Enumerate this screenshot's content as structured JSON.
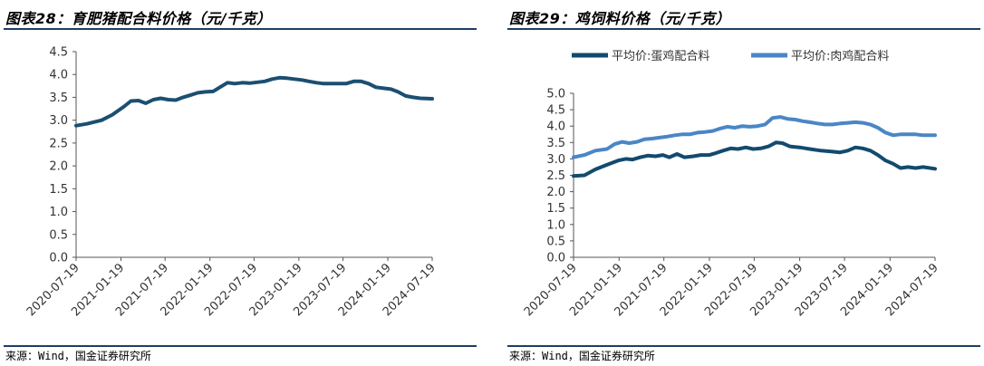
{
  "panels": [
    {
      "title": "图表28：育肥猪配合料价格（元/千克）",
      "source": "来源：Wind，国金证券研究所"
    },
    {
      "title": "图表29：鸡饲料价格（元/千克）",
      "source": "来源：Wind，国金证券研究所"
    }
  ],
  "chart_data": [
    {
      "type": "line",
      "title": "",
      "xlabel": "",
      "ylabel": "",
      "ylim": [
        0,
        4.5
      ],
      "yticks": [
        "0.0",
        "0.5",
        "1.0",
        "1.5",
        "2.0",
        "2.5",
        "3.0",
        "3.5",
        "4.0",
        "4.5"
      ],
      "xticks": [
        "2020-07-19",
        "2021-01-19",
        "2021-07-19",
        "2022-01-19",
        "2022-07-19",
        "2023-01-19",
        "2023-07-19",
        "2024-01-19",
        "2024-07-19"
      ],
      "xlim": [
        "2020-07-19",
        "2024-07-19"
      ],
      "legend": "none",
      "grid": false,
      "series": [
        {
          "name": "",
          "color": "#1b4f72",
          "points": [
            [
              "2020-07-19",
              2.88
            ],
            [
              "2020-09-01",
              2.92
            ],
            [
              "2020-11-01",
              3.0
            ],
            [
              "2020-12-15",
              3.12
            ],
            [
              "2021-02-01",
              3.3
            ],
            [
              "2021-03-01",
              3.42
            ],
            [
              "2021-04-01",
              3.43
            ],
            [
              "2021-05-01",
              3.37
            ],
            [
              "2021-06-01",
              3.45
            ],
            [
              "2021-07-01",
              3.48
            ],
            [
              "2021-08-01",
              3.45
            ],
            [
              "2021-09-01",
              3.44
            ],
            [
              "2021-10-01",
              3.5
            ],
            [
              "2021-11-01",
              3.55
            ],
            [
              "2021-12-01",
              3.6
            ],
            [
              "2022-01-01",
              3.62
            ],
            [
              "2022-02-01",
              3.63
            ],
            [
              "2022-03-01",
              3.72
            ],
            [
              "2022-04-01",
              3.82
            ],
            [
              "2022-05-01",
              3.8
            ],
            [
              "2022-06-01",
              3.82
            ],
            [
              "2022-07-01",
              3.81
            ],
            [
              "2022-08-01",
              3.83
            ],
            [
              "2022-09-01",
              3.85
            ],
            [
              "2022-10-01",
              3.9
            ],
            [
              "2022-11-01",
              3.93
            ],
            [
              "2022-12-01",
              3.92
            ],
            [
              "2023-01-01",
              3.9
            ],
            [
              "2023-02-01",
              3.88
            ],
            [
              "2023-03-01",
              3.85
            ],
            [
              "2023-04-01",
              3.82
            ],
            [
              "2023-05-01",
              3.8
            ],
            [
              "2023-06-01",
              3.8
            ],
            [
              "2023-07-01",
              3.8
            ],
            [
              "2023-08-01",
              3.8
            ],
            [
              "2023-09-01",
              3.85
            ],
            [
              "2023-10-01",
              3.85
            ],
            [
              "2023-11-01",
              3.8
            ],
            [
              "2023-12-01",
              3.72
            ],
            [
              "2024-01-01",
              3.7
            ],
            [
              "2024-02-01",
              3.68
            ],
            [
              "2024-03-01",
              3.62
            ],
            [
              "2024-04-01",
              3.53
            ],
            [
              "2024-05-01",
              3.5
            ],
            [
              "2024-06-01",
              3.48
            ],
            [
              "2024-07-19",
              3.47
            ]
          ]
        }
      ]
    },
    {
      "type": "line",
      "title": "",
      "xlabel": "",
      "ylabel": "",
      "ylim": [
        0,
        5.0
      ],
      "yticks": [
        "0.0",
        "0.5",
        "1.0",
        "1.5",
        "2.0",
        "2.5",
        "3.0",
        "3.5",
        "4.0",
        "4.5",
        "5.0"
      ],
      "xticks": [
        "2020-07-19",
        "2021-01-19",
        "2021-07-19",
        "2022-01-19",
        "2022-07-19",
        "2023-01-19",
        "2023-07-19",
        "2024-01-19",
        "2024-07-19"
      ],
      "xlim": [
        "2020-07-19",
        "2024-07-19"
      ],
      "legend": "top",
      "grid": false,
      "series": [
        {
          "name": "平均价:蛋鸡配合料",
          "color": "#134a6e",
          "points": [
            [
              "2020-07-19",
              2.48
            ],
            [
              "2020-09-01",
              2.5
            ],
            [
              "2020-10-15",
              2.68
            ],
            [
              "2020-12-01",
              2.82
            ],
            [
              "2021-01-15",
              2.95
            ],
            [
              "2021-02-15",
              3.0
            ],
            [
              "2021-03-15",
              2.98
            ],
            [
              "2021-04-15",
              3.05
            ],
            [
              "2021-05-15",
              3.1
            ],
            [
              "2021-06-15",
              3.08
            ],
            [
              "2021-07-15",
              3.12
            ],
            [
              "2021-08-10",
              3.05
            ],
            [
              "2021-09-10",
              3.15
            ],
            [
              "2021-10-10",
              3.05
            ],
            [
              "2021-11-15",
              3.08
            ],
            [
              "2021-12-15",
              3.12
            ],
            [
              "2022-01-19",
              3.12
            ],
            [
              "2022-02-15",
              3.18
            ],
            [
              "2022-03-15",
              3.25
            ],
            [
              "2022-04-15",
              3.32
            ],
            [
              "2022-05-15",
              3.3
            ],
            [
              "2022-06-15",
              3.35
            ],
            [
              "2022-07-15",
              3.3
            ],
            [
              "2022-08-15",
              3.32
            ],
            [
              "2022-09-15",
              3.38
            ],
            [
              "2022-10-15",
              3.5
            ],
            [
              "2022-11-10",
              3.48
            ],
            [
              "2022-12-10",
              3.38
            ],
            [
              "2023-01-19",
              3.35
            ],
            [
              "2023-03-01",
              3.3
            ],
            [
              "2023-04-15",
              3.25
            ],
            [
              "2023-06-01",
              3.22
            ],
            [
              "2023-07-01",
              3.2
            ],
            [
              "2023-08-01",
              3.25
            ],
            [
              "2023-09-01",
              3.35
            ],
            [
              "2023-10-01",
              3.32
            ],
            [
              "2023-11-01",
              3.25
            ],
            [
              "2023-12-01",
              3.12
            ],
            [
              "2024-01-01",
              2.95
            ],
            [
              "2024-02-01",
              2.85
            ],
            [
              "2024-03-01",
              2.72
            ],
            [
              "2024-04-01",
              2.75
            ],
            [
              "2024-05-01",
              2.72
            ],
            [
              "2024-06-01",
              2.75
            ],
            [
              "2024-07-19",
              2.7
            ]
          ]
        },
        {
          "name": "平均价:肉鸡配合料",
          "color": "#4a86c6",
          "points": [
            [
              "2020-07-19",
              3.05
            ],
            [
              "2020-09-01",
              3.12
            ],
            [
              "2020-10-15",
              3.25
            ],
            [
              "2020-12-01",
              3.3
            ],
            [
              "2021-01-01",
              3.45
            ],
            [
              "2021-02-01",
              3.52
            ],
            [
              "2021-03-01",
              3.48
            ],
            [
              "2021-04-01",
              3.52
            ],
            [
              "2021-05-01",
              3.6
            ],
            [
              "2021-06-01",
              3.62
            ],
            [
              "2021-07-01",
              3.65
            ],
            [
              "2021-08-01",
              3.68
            ],
            [
              "2021-09-01",
              3.72
            ],
            [
              "2021-10-01",
              3.75
            ],
            [
              "2021-11-01",
              3.75
            ],
            [
              "2021-12-01",
              3.8
            ],
            [
              "2022-01-01",
              3.82
            ],
            [
              "2022-02-01",
              3.85
            ],
            [
              "2022-03-01",
              3.92
            ],
            [
              "2022-04-01",
              3.98
            ],
            [
              "2022-05-01",
              3.95
            ],
            [
              "2022-06-01",
              4.0
            ],
            [
              "2022-07-01",
              3.98
            ],
            [
              "2022-08-01",
              4.0
            ],
            [
              "2022-09-01",
              4.05
            ],
            [
              "2022-10-01",
              4.25
            ],
            [
              "2022-11-01",
              4.28
            ],
            [
              "2022-12-01",
              4.22
            ],
            [
              "2023-01-01",
              4.2
            ],
            [
              "2023-02-01",
              4.15
            ],
            [
              "2023-03-01",
              4.12
            ],
            [
              "2023-04-01",
              4.08
            ],
            [
              "2023-05-01",
              4.05
            ],
            [
              "2023-06-01",
              4.05
            ],
            [
              "2023-07-01",
              4.08
            ],
            [
              "2023-08-01",
              4.1
            ],
            [
              "2023-09-01",
              4.12
            ],
            [
              "2023-10-01",
              4.1
            ],
            [
              "2023-11-01",
              4.05
            ],
            [
              "2023-12-01",
              3.95
            ],
            [
              "2024-01-01",
              3.8
            ],
            [
              "2024-02-01",
              3.72
            ],
            [
              "2024-03-01",
              3.75
            ],
            [
              "2024-04-01",
              3.75
            ],
            [
              "2024-05-01",
              3.75
            ],
            [
              "2024-06-01",
              3.72
            ],
            [
              "2024-07-19",
              3.72
            ]
          ]
        }
      ]
    }
  ]
}
